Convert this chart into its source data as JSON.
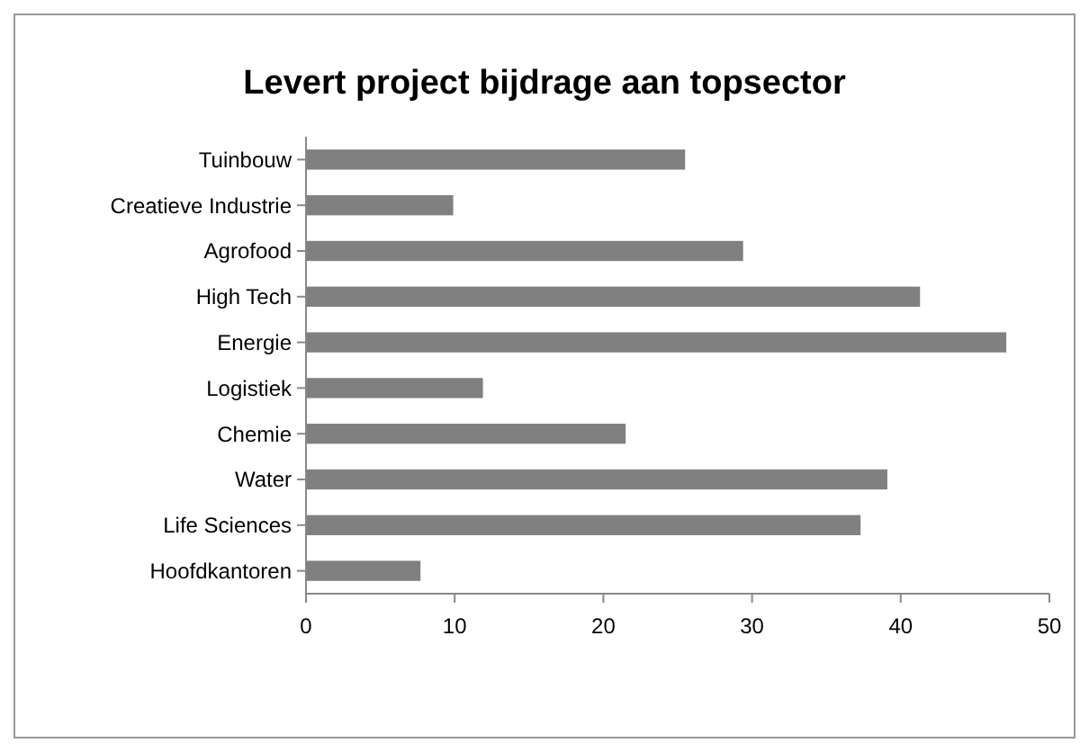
{
  "chart_data": {
    "type": "bar",
    "orientation": "horizontal",
    "title": "Levert project bijdrage aan topsector",
    "categories": [
      "Tuinbouw",
      "Creatieve Industrie",
      "Agrofood",
      "High Tech",
      "Energie",
      "Logistiek",
      "Chemie",
      "Water",
      "Life Sciences",
      "Hoofdkantoren"
    ],
    "values": [
      25.5,
      9.9,
      29.4,
      41.3,
      47.1,
      11.9,
      21.5,
      39.1,
      37.3,
      7.7
    ],
    "color": "#808080",
    "xlim": [
      0,
      50
    ],
    "xticks": [
      0,
      10,
      20,
      30,
      40,
      50
    ],
    "grid": false
  }
}
